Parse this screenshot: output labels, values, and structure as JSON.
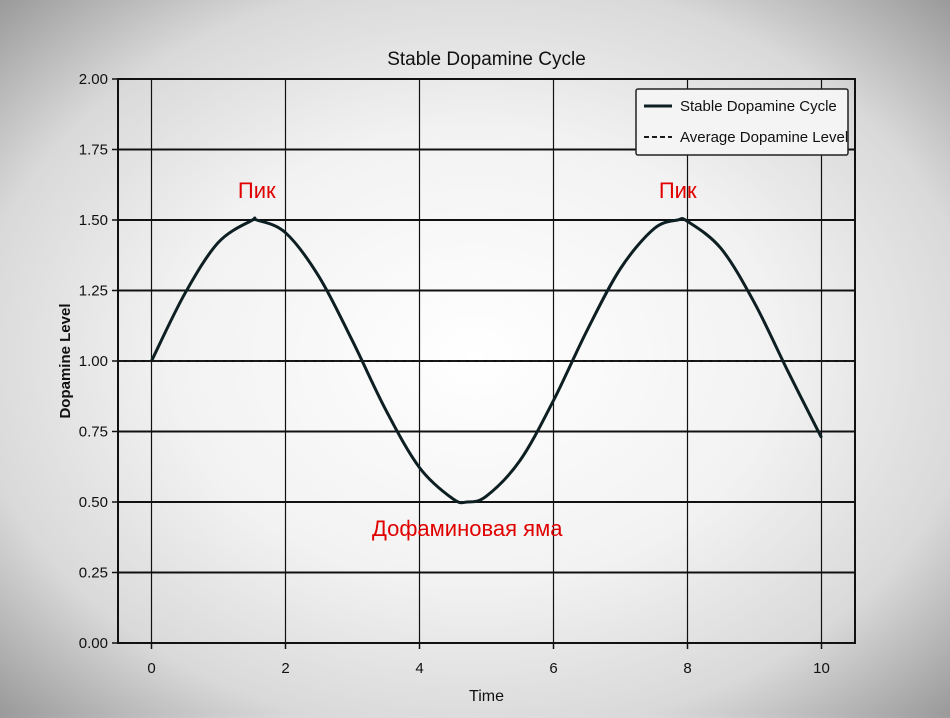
{
  "chart_data": {
    "type": "line",
    "title": "Stable Dopamine Cycle",
    "xlabel": "Time",
    "ylabel": "Dopamine Level",
    "xlim": [
      -0.5,
      10.5
    ],
    "ylim": [
      0,
      2
    ],
    "x_ticks": [
      0,
      2,
      4,
      6,
      8,
      10
    ],
    "x_tick_labels": [
      "0",
      "2",
      "4",
      "6",
      "8",
      "10"
    ],
    "y_ticks": [
      0,
      0.25,
      0.5,
      0.75,
      1.0,
      1.25,
      1.5,
      1.75,
      2.0
    ],
    "y_tick_labels": [
      "0.00",
      "0.25",
      "0.50",
      "0.75",
      "1.00",
      "1.25",
      "1.50",
      "1.75",
      "2.00"
    ],
    "grid": true,
    "legend_position": "top-right",
    "series": [
      {
        "name": "Stable Dopamine Cycle",
        "style": "solid",
        "color": "#0d1f22",
        "x": [
          0,
          0.5,
          1,
          1.5,
          1.571,
          2,
          2.5,
          3,
          3.5,
          4,
          4.5,
          4.712,
          5,
          5.5,
          6,
          6.5,
          7,
          7.5,
          7.854,
          8,
          8.5,
          9,
          9.5,
          10
        ],
        "y": [
          1.0,
          1.24,
          1.421,
          1.499,
          1.5,
          1.455,
          1.299,
          1.071,
          0.825,
          0.622,
          0.511,
          0.5,
          0.521,
          0.647,
          0.86,
          1.108,
          1.328,
          1.469,
          1.5,
          1.495,
          1.399,
          1.206,
          0.963,
          0.728
        ]
      },
      {
        "name": "Average Dopamine Level",
        "style": "dashed",
        "color": "#1a1a1a",
        "x": [
          -0.5,
          10.5
        ],
        "y": [
          1.0,
          1.0
        ]
      }
    ],
    "annotations": [
      {
        "text": "Пик",
        "x": 1.571,
        "y": 1.6,
        "color": "#e00000"
      },
      {
        "text": "Пик",
        "x": 7.854,
        "y": 1.6,
        "color": "#e00000"
      },
      {
        "text": "Дофаминовая яма",
        "x": 4.712,
        "y": 0.4,
        "color": "#e00000"
      }
    ]
  }
}
